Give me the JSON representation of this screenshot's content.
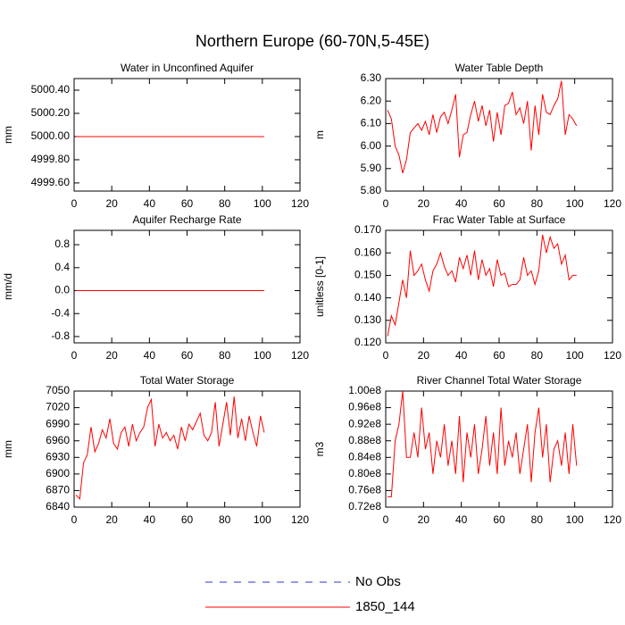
{
  "title": "Northern Europe (60-70N,5-45E)",
  "legend": [
    {
      "name": "No Obs",
      "color": "#3333cc",
      "dash": "8,8"
    },
    {
      "name": "1850_144",
      "color": "#ff0000"
    }
  ],
  "chart_data": [
    {
      "type": "line",
      "title": "Water in Unconfined Aquifer",
      "ylabel": "mm",
      "color": "#ff0000",
      "x": [
        1,
        101
      ],
      "values": [
        5000.0,
        5000.0
      ],
      "xlim": [
        0,
        120
      ],
      "xticks": [
        0,
        20,
        40,
        60,
        80,
        100,
        120
      ],
      "ylim": [
        4999.53,
        5000.5
      ],
      "yticks": [
        {
          "value": 4999.6,
          "label": "4999.60"
        },
        {
          "value": 4999.8,
          "label": "4999.80"
        },
        {
          "value": 5000.0,
          "label": "5000.00"
        },
        {
          "value": 5000.2,
          "label": "5000.20"
        },
        {
          "value": 5000.4,
          "label": "5000.40"
        }
      ]
    },
    {
      "type": "line",
      "title": "Water Table Depth",
      "ylabel": "m",
      "color": "#ff0000",
      "x": [
        1,
        3,
        5,
        7,
        9,
        11,
        13,
        15,
        17,
        19,
        21,
        23,
        25,
        27,
        29,
        31,
        33,
        35,
        37,
        39,
        41,
        43,
        45,
        47,
        49,
        51,
        53,
        55,
        57,
        59,
        61,
        63,
        65,
        67,
        69,
        71,
        73,
        75,
        77,
        79,
        81,
        83,
        85,
        87,
        89,
        91,
        93,
        95,
        97,
        99,
        101
      ],
      "values": [
        6.16,
        6.12,
        6.0,
        5.96,
        5.88,
        5.94,
        6.06,
        6.08,
        6.1,
        6.07,
        6.11,
        6.05,
        6.14,
        6.06,
        6.13,
        6.15,
        6.1,
        6.16,
        6.23,
        5.95,
        6.05,
        6.06,
        6.14,
        6.2,
        6.11,
        6.18,
        6.09,
        6.16,
        6.02,
        6.15,
        6.05,
        6.18,
        6.19,
        6.24,
        6.14,
        6.17,
        6.1,
        6.2,
        5.98,
        6.18,
        6.05,
        6.23,
        6.15,
        6.14,
        6.18,
        6.21,
        6.29,
        6.05,
        6.14,
        6.12,
        6.09
      ],
      "xlim": [
        0,
        120
      ],
      "xticks": [
        0,
        20,
        40,
        60,
        80,
        100,
        120
      ],
      "ylim": [
        5.8,
        6.3
      ],
      "yticks": [
        {
          "value": 5.8,
          "label": "5.80"
        },
        {
          "value": 5.9,
          "label": "5.90"
        },
        {
          "value": 6.0,
          "label": "6.00"
        },
        {
          "value": 6.1,
          "label": "6.10"
        },
        {
          "value": 6.2,
          "label": "6.20"
        },
        {
          "value": 6.3,
          "label": "6.30"
        }
      ]
    },
    {
      "type": "line",
      "title": "Aquifer Recharge Rate",
      "ylabel": "mm/d",
      "color": "#ff0000",
      "x": [
        1,
        101
      ],
      "values": [
        0,
        0
      ],
      "xlim": [
        0,
        120
      ],
      "xticks": [
        0,
        20,
        40,
        60,
        80,
        100,
        120
      ],
      "ylim": [
        -0.91,
        1.05
      ],
      "yticks": [
        -0.8,
        -0.4,
        {
          "value": 0,
          "label": "0.0"
        },
        0.4,
        0.8
      ]
    },
    {
      "type": "line",
      "title": "Frac Water Table at Surface",
      "ylabel": "unitless [0-1]",
      "color": "#ff0000",
      "x": [
        1,
        3,
        5,
        7,
        9,
        11,
        13,
        15,
        17,
        19,
        21,
        23,
        25,
        27,
        29,
        31,
        33,
        35,
        37,
        39,
        41,
        43,
        45,
        47,
        49,
        51,
        53,
        55,
        57,
        59,
        61,
        63,
        65,
        67,
        69,
        71,
        73,
        75,
        77,
        79,
        81,
        83,
        85,
        87,
        89,
        91,
        93,
        95,
        97,
        99,
        101
      ],
      "values": [
        0.123,
        0.132,
        0.128,
        0.138,
        0.148,
        0.14,
        0.161,
        0.15,
        0.152,
        0.155,
        0.148,
        0.143,
        0.152,
        0.155,
        0.16,
        0.154,
        0.15,
        0.152,
        0.147,
        0.158,
        0.153,
        0.159,
        0.15,
        0.161,
        0.148,
        0.157,
        0.15,
        0.153,
        0.145,
        0.157,
        0.15,
        0.151,
        0.145,
        0.146,
        0.146,
        0.148,
        0.158,
        0.15,
        0.152,
        0.146,
        0.152,
        0.168,
        0.16,
        0.167,
        0.162,
        0.164,
        0.155,
        0.159,
        0.148,
        0.15,
        0.15
      ],
      "xlim": [
        0,
        120
      ],
      "xticks": [
        0,
        20,
        40,
        60,
        80,
        100,
        120
      ],
      "ylim": [
        0.12,
        0.17
      ],
      "yticks": [
        {
          "value": 0.12,
          "label": "0.120"
        },
        {
          "value": 0.13,
          "label": "0.130"
        },
        {
          "value": 0.14,
          "label": "0.140"
        },
        {
          "value": 0.15,
          "label": "0.150"
        },
        {
          "value": 0.16,
          "label": "0.160"
        },
        {
          "value": 0.17,
          "label": "0.170"
        }
      ]
    },
    {
      "type": "line",
      "title": "Total Water Storage",
      "ylabel": "mm",
      "color": "#ff0000",
      "x": [
        1,
        3,
        5,
        7,
        9,
        11,
        13,
        15,
        17,
        19,
        21,
        23,
        25,
        27,
        29,
        31,
        33,
        35,
        37,
        39,
        41,
        43,
        45,
        47,
        49,
        51,
        53,
        55,
        57,
        59,
        61,
        63,
        65,
        67,
        69,
        71,
        73,
        75,
        77,
        79,
        81,
        83,
        85,
        87,
        89,
        91,
        93,
        95,
        97,
        99,
        101
      ],
      "values": [
        6862,
        6855,
        6920,
        6935,
        6985,
        6940,
        6955,
        6980,
        6965,
        7000,
        6955,
        6945,
        6975,
        6985,
        6950,
        6990,
        6960,
        6975,
        6985,
        7020,
        7035,
        6950,
        6990,
        6965,
        6975,
        6960,
        6970,
        6945,
        6985,
        6960,
        6990,
        6980,
        6995,
        7010,
        6970,
        6960,
        6975,
        7030,
        6950,
        6990,
        7030,
        6970,
        7040,
        6965,
        7000,
        6960,
        7005,
        6975,
        6950,
        7005,
        6975
      ],
      "xlim": [
        0,
        120
      ],
      "xticks": [
        0,
        20,
        40,
        60,
        80,
        100,
        120
      ],
      "ylim": [
        6840,
        7050
      ],
      "yticks": [
        6840,
        6870,
        6900,
        6930,
        6960,
        6990,
        7020,
        7050
      ]
    },
    {
      "type": "line",
      "title": "River Channel Total Water Storage",
      "ylabel": "m3",
      "color": "#ff0000",
      "x": [
        1,
        3,
        5,
        7,
        9,
        11,
        13,
        15,
        17,
        19,
        21,
        23,
        25,
        27,
        29,
        31,
        33,
        35,
        37,
        39,
        41,
        43,
        45,
        47,
        49,
        51,
        53,
        55,
        57,
        59,
        61,
        63,
        65,
        67,
        69,
        71,
        73,
        75,
        77,
        79,
        81,
        83,
        85,
        87,
        89,
        91,
        93,
        95,
        97,
        99,
        101
      ],
      "values": [
        74500000,
        74500000,
        88000000,
        92000000,
        100000000,
        84000000,
        84000000,
        90000000,
        84000000,
        96000000,
        86000000,
        90000000,
        80000000,
        88000000,
        84000000,
        92000000,
        82000000,
        88000000,
        80000000,
        94000000,
        78000000,
        90000000,
        84000000,
        92000000,
        80000000,
        86000000,
        94000000,
        82000000,
        90000000,
        80000000,
        96000000,
        82000000,
        88000000,
        84000000,
        90000000,
        80000000,
        86000000,
        92000000,
        78000000,
        90000000,
        96000000,
        84000000,
        92000000,
        78000000,
        86000000,
        88000000,
        82000000,
        90000000,
        80000000,
        92000000,
        82000000
      ],
      "xlim": [
        0,
        120
      ],
      "xticks": [
        0,
        20,
        40,
        60,
        80,
        100,
        120
      ],
      "ylim": [
        72000000,
        100000000
      ],
      "yticks": [
        {
          "value": 72000000,
          "label": "0.72e8"
        },
        {
          "value": 76000000,
          "label": "0.76e8"
        },
        {
          "value": 80000000,
          "label": "0.80e8"
        },
        {
          "value": 84000000,
          "label": "0.84e8"
        },
        {
          "value": 88000000,
          "label": "0.88e8"
        },
        {
          "value": 92000000,
          "label": "0.92e8"
        },
        {
          "value": 96000000,
          "label": "0.96e8"
        },
        {
          "value": 100000000,
          "label": "1.00e8"
        }
      ]
    }
  ]
}
